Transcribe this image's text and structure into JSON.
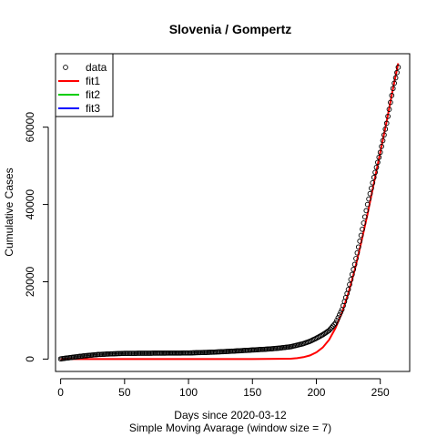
{
  "chart_data": {
    "type": "scatter",
    "title": "Slovenia / Gompertz",
    "xlabel": "Days since 2020-03-12",
    "subtitle": "Simple Moving Avarage (window size = 7)",
    "ylabel": "Cumulative Cases",
    "xlim": [
      -4,
      273
    ],
    "ylim": [
      -3200,
      79000
    ],
    "xticks": [
      0,
      50,
      100,
      150,
      200,
      250
    ],
    "yticks": [
      0,
      20000,
      40000,
      60000
    ],
    "grid": false,
    "legend_position": "top-left",
    "legend": [
      {
        "label": "data",
        "kind": "point",
        "color": "#000000"
      },
      {
        "label": "fit1",
        "kind": "line",
        "color": "#ff0000"
      },
      {
        "label": "fit2",
        "kind": "line",
        "color": "#00cd00"
      },
      {
        "label": "fit3",
        "kind": "line",
        "color": "#0000ff"
      }
    ],
    "data_anchors": {
      "x": [
        0,
        10,
        20,
        30,
        40,
        50,
        70,
        100,
        120,
        140,
        160,
        170,
        180,
        190,
        195,
        200,
        205,
        210,
        215,
        220,
        225,
        230,
        235,
        240,
        245,
        250,
        255,
        260,
        264
      ],
      "y": [
        50,
        500,
        900,
        1200,
        1350,
        1480,
        1520,
        1580,
        1800,
        2150,
        2550,
        2800,
        3200,
        4000,
        4600,
        5400,
        6300,
        7400,
        9300,
        12800,
        18000,
        24500,
        32000,
        40000,
        47000,
        53500,
        61000,
        70000,
        75500
      ]
    },
    "data_n": 265,
    "series": [
      {
        "name": "fit1",
        "color": "#ff0000",
        "x": [
          0,
          150,
          180,
          185,
          190,
          195,
          200,
          205,
          210,
          215,
          220,
          225,
          230,
          235,
          240,
          245,
          250,
          255,
          260,
          264
        ],
        "y": [
          0,
          0,
          100,
          230,
          500,
          950,
          1750,
          3000,
          5000,
          8000,
          12000,
          17000,
          23000,
          30000,
          37500,
          45500,
          53500,
          61500,
          70000,
          76500
        ]
      }
    ]
  }
}
